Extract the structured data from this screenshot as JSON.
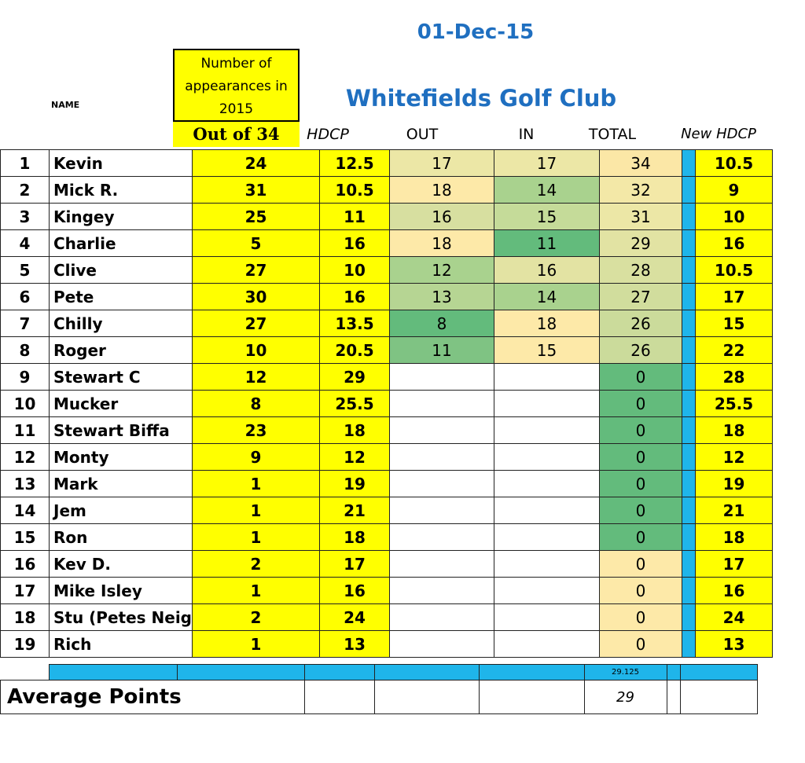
{
  "header": {
    "date": "01-Dec-15",
    "club": "Whitefields Golf Club",
    "name_label": "NAME",
    "appearances_lines": [
      "Number of",
      "appearances in",
      "2015"
    ],
    "out_of": "Out of 34",
    "hdcp": "HDCP",
    "out": "OUT",
    "in": "IN",
    "total": "TOTAL",
    "new_hdcp": "New HDCP"
  },
  "colors": {
    "yellow": "#ffff00",
    "blue": "#1fb5ea",
    "title_blue": "#1f6fc0"
  },
  "rows": [
    {
      "num": "1",
      "name": "Kevin",
      "app": "24",
      "hdcp": "12.5",
      "out": "17",
      "in": "17",
      "total": "34",
      "new": "10.5",
      "out_bg": "#ece7a6",
      "in_bg": "#ece7a6",
      "tot_bg": "#fbe7a6"
    },
    {
      "num": "2",
      "name": "Mick R.",
      "app": "31",
      "hdcp": "10.5",
      "out": "18",
      "in": "14",
      "total": "32",
      "new": "9",
      "out_bg": "#fde9a8",
      "in_bg": "#a9d28e",
      "tot_bg": "#f3e8a7"
    },
    {
      "num": "3",
      "name": "Kingey",
      "app": "25",
      "hdcp": "11",
      "out": "16",
      "in": "15",
      "total": "31",
      "new": "10",
      "out_bg": "#d7dfa0",
      "in_bg": "#c5db99",
      "tot_bg": "#ece7a6"
    },
    {
      "num": "4",
      "name": "Charlie",
      "app": "5",
      "hdcp": "16",
      "out": "18",
      "in": "11",
      "total": "29",
      "new": "16",
      "out_bg": "#fde9a8",
      "in_bg": "#63bb7c",
      "tot_bg": "#e2e3a3"
    },
    {
      "num": "5",
      "name": "Clive",
      "app": "27",
      "hdcp": "10",
      "out": "12",
      "in": "16",
      "total": "28",
      "new": "10.5",
      "out_bg": "#a9d28e",
      "in_bg": "#e3e3a3",
      "tot_bg": "#d9e0a0"
    },
    {
      "num": "6",
      "name": "Pete",
      "app": "30",
      "hdcp": "16",
      "out": "13",
      "in": "14",
      "total": "27",
      "new": "17",
      "out_bg": "#b6d593",
      "in_bg": "#a9d28e",
      "tot_bg": "#d1dd9d"
    },
    {
      "num": "7",
      "name": "Chilly",
      "app": "27",
      "hdcp": "13.5",
      "out": "8",
      "in": "18",
      "total": "26",
      "new": "15",
      "out_bg": "#63bb7c",
      "in_bg": "#fde9a8",
      "tot_bg": "#cbdb9b"
    },
    {
      "num": "8",
      "name": "Roger",
      "app": "10",
      "hdcp": "20.5",
      "out": "11",
      "in": "15",
      "total": "26",
      "new": "22",
      "out_bg": "#7fc383",
      "in_bg": "#fde9a8",
      "tot_bg": "#cbdb9b"
    },
    {
      "num": "9",
      "name": "Stewart C",
      "app": "12",
      "hdcp": "29",
      "out": "",
      "in": "",
      "total": "0",
      "new": "28",
      "out_bg": "#ffffff",
      "in_bg": "#ffffff",
      "tot_bg": "#63bb7c"
    },
    {
      "num": "10",
      "name": "Mucker",
      "app": "8",
      "hdcp": "25.5",
      "out": "",
      "in": "",
      "total": "0",
      "new": "25.5",
      "out_bg": "#ffffff",
      "in_bg": "#ffffff",
      "tot_bg": "#63bb7c"
    },
    {
      "num": "11",
      "name": "Stewart Biffa",
      "app": "23",
      "hdcp": "18",
      "out": "",
      "in": "",
      "total": "0",
      "new": "18",
      "out_bg": "#ffffff",
      "in_bg": "#ffffff",
      "tot_bg": "#63bb7c"
    },
    {
      "num": "12",
      "name": "Monty",
      "app": "9",
      "hdcp": "12",
      "out": "",
      "in": "",
      "total": "0",
      "new": "12",
      "out_bg": "#ffffff",
      "in_bg": "#ffffff",
      "tot_bg": "#63bb7c"
    },
    {
      "num": "13",
      "name": "Mark",
      "app": "1",
      "hdcp": "19",
      "out": "",
      "in": "",
      "total": "0",
      "new": "19",
      "out_bg": "#ffffff",
      "in_bg": "#ffffff",
      "tot_bg": "#63bb7c"
    },
    {
      "num": "14",
      "name": "Jem",
      "app": "1",
      "hdcp": "21",
      "out": "",
      "in": "",
      "total": "0",
      "new": "21",
      "out_bg": "#ffffff",
      "in_bg": "#ffffff",
      "tot_bg": "#63bb7c"
    },
    {
      "num": "15",
      "name": "Ron",
      "app": "1",
      "hdcp": "18",
      "out": "",
      "in": "",
      "total": "0",
      "new": "18",
      "out_bg": "#ffffff",
      "in_bg": "#ffffff",
      "tot_bg": "#63bb7c"
    },
    {
      "num": "16",
      "name": "Kev D.",
      "app": "2",
      "hdcp": "17",
      "out": "",
      "in": "",
      "total": "0",
      "new": "17",
      "out_bg": "#ffffff",
      "in_bg": "#ffffff",
      "tot_bg": "#fde9a8"
    },
    {
      "num": "17",
      "name": "Mike Isley",
      "app": "1",
      "hdcp": "16",
      "out": "",
      "in": "",
      "total": "0",
      "new": "16",
      "out_bg": "#ffffff",
      "in_bg": "#ffffff",
      "tot_bg": "#fde9a8"
    },
    {
      "num": "18",
      "name": "Stu (Petes Neig",
      "app": "2",
      "hdcp": "24",
      "out": "",
      "in": "",
      "total": "0",
      "new": "24",
      "out_bg": "#ffffff",
      "in_bg": "#ffffff",
      "tot_bg": "#fde9a8"
    },
    {
      "num": "19",
      "name": "Rich",
      "app": "1",
      "hdcp": "13",
      "out": "",
      "in": "",
      "total": "0",
      "new": "13",
      "out_bg": "#ffffff",
      "in_bg": "#ffffff",
      "tot_bg": "#fde9a8"
    }
  ],
  "footer": {
    "subtotal": "29.125",
    "avg_label": "Average Points",
    "avg_value": "29"
  }
}
